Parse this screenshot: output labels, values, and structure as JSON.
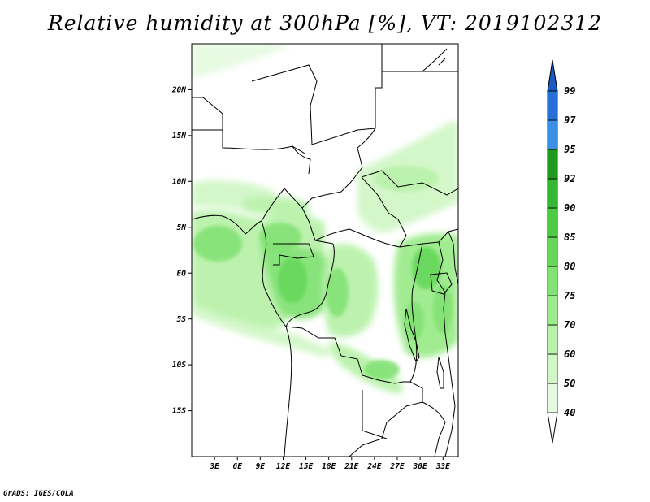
{
  "title": "Relative humidity at 300hPa [%], VT: 2019102312",
  "footer": "GrADS: IGES/COLA",
  "chart_data": {
    "type": "heatmap",
    "variable": "Relative humidity",
    "level": "300hPa",
    "units": "%",
    "valid_time": "2019102312",
    "lon_range": [
      0,
      35
    ],
    "lat_range": [
      -20,
      25
    ],
    "x_ticks": [
      "3E",
      "6E",
      "9E",
      "12E",
      "15E",
      "18E",
      "21E",
      "24E",
      "27E",
      "30E",
      "33E"
    ],
    "x_tick_values": [
      3,
      6,
      9,
      12,
      15,
      18,
      21,
      24,
      27,
      30,
      33
    ],
    "y_ticks": [
      "20N",
      "15N",
      "10N",
      "5N",
      "EQ",
      "5S",
      "10S",
      "15S"
    ],
    "y_tick_values": [
      20,
      15,
      10,
      5,
      0,
      -5,
      -10,
      -15
    ],
    "colorbar": {
      "levels": [
        40,
        50,
        60,
        70,
        75,
        80,
        85,
        90,
        92,
        95,
        97,
        99
      ],
      "labels": [
        "40",
        "50",
        "60",
        "70",
        "75",
        "80",
        "85",
        "90",
        "92",
        "95",
        "97",
        "99"
      ],
      "colors": [
        "#e6fae1",
        "#d2f7c7",
        "#b9f2aa",
        "#9ceb8c",
        "#82e274",
        "#66d75a",
        "#4ccb45",
        "#34b834",
        "#1f9a1f",
        "#3c8fe6",
        "#2670d8",
        "#1a5bbf"
      ]
    }
  }
}
